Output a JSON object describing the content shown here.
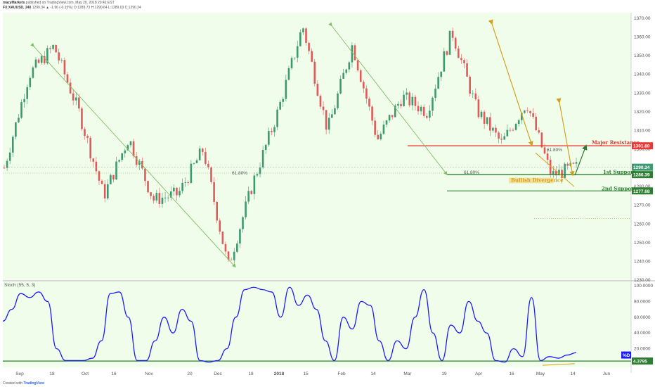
{
  "header": {
    "line1_author": "mazyMarkets",
    "line1_rest": "published on TradingView.com, May 20, 2018 20:42 EST",
    "line2_symbol": "FX:XAUUSD, 240",
    "line2_ohlc": "1290.34 ▲ -1.96 (-0.15%) O:1289.73 H:1290.64 L:1289.03 C:1290.34"
  },
  "footer": {
    "created_with": "Created with",
    "brand": "TradingView"
  },
  "colors": {
    "background": "#f1fdeb",
    "up": "#3d9970",
    "down": "#e05a5a",
    "resistance": "#e53935",
    "support": "#2e7d32",
    "stoch": "#1a1aff",
    "fib": "#a3a339",
    "arrow_green": "#7cbf62",
    "arrow_gold": "#d4a11e"
  },
  "chart_data": [
    {
      "type": "candlestick",
      "instrument": "FX:XAUUSD",
      "timeframe": "240",
      "x_tick_labels": [
        "Sep",
        "18",
        "Oct",
        "16",
        "Nov",
        "20",
        "Dec",
        "18",
        "2018",
        "15",
        "Feb",
        "14",
        "Mar",
        "19",
        "Apr",
        "16",
        "May",
        "14",
        "Jun"
      ],
      "y_tick_labels": [
        "1370.00",
        "1360.00",
        "1350.00",
        "1340.00",
        "1330.00",
        "1320.00",
        "1310.00",
        "1300.00",
        "1290.00",
        "1280.00",
        "1270.00",
        "1260.00",
        "1250.00",
        "1240.00",
        "1230.00"
      ],
      "ylim": [
        1230,
        1373
      ],
      "approx_close_path": [
        [
          "Sep",
          1290
        ],
        [
          "Sep 2wk",
          1340
        ],
        [
          "Sep 13",
          1355
        ],
        [
          "Sep 25",
          1320
        ],
        [
          "Oct 5",
          1275
        ],
        [
          "Oct 16",
          1306
        ],
        [
          "Oct 25",
          1273
        ],
        [
          "Nov 10",
          1276
        ],
        [
          "Nov 28",
          1300
        ],
        [
          "Dec 12",
          1237
        ],
        [
          "Dec 27",
          1282
        ],
        [
          "Jan 8",
          1320
        ],
        [
          "Jan 25",
          1366
        ],
        [
          "Feb 8",
          1310
        ],
        [
          "Feb 16",
          1356
        ],
        [
          "Mar 1",
          1305
        ],
        [
          "Mar 15",
          1328
        ],
        [
          "Mar 29",
          1320
        ],
        [
          "Apr 11",
          1363
        ],
        [
          "Apr 23",
          1321
        ],
        [
          "May 2",
          1303
        ],
        [
          "May 11",
          1325
        ],
        [
          "May 16",
          1286
        ],
        [
          "May 18",
          1290.34
        ]
      ],
      "annotations": [
        {
          "label": "Major Resistance",
          "price": 1301.8,
          "tag": "1301.80",
          "color": "#e53935"
        },
        {
          "label": "1st Support",
          "price": 1286.39,
          "tag": "1286.39",
          "color": "#2e7d32"
        },
        {
          "label": "2nd Support",
          "price": 1277.68,
          "tag": "1277.68",
          "color": "#2e7d32"
        },
        {
          "label": "Bullish Divergence",
          "color": "#d4a11e"
        }
      ],
      "fib_labels": [
        "61.80%",
        "61.80%",
        "61.80%"
      ],
      "current_price_tag": "1290.34"
    },
    {
      "type": "line",
      "indicator": "Stoch (55, 5, 3)",
      "ylim": [
        0,
        100
      ],
      "y_tick_labels": [
        "100.0000",
        "80.0000",
        "60.0000",
        "40.0000",
        "20.0000"
      ],
      "current_value_tag": "4.3795",
      "secondary_tag": "%D",
      "approx_values": [
        55,
        70,
        90,
        85,
        92,
        80,
        20,
        5,
        5,
        5,
        8,
        30,
        90,
        92,
        60,
        5,
        5,
        30,
        60,
        40,
        70,
        55,
        5,
        3,
        5,
        20,
        60,
        95,
        98,
        95,
        92,
        60,
        98,
        75,
        88,
        70,
        30,
        5,
        60,
        45,
        80,
        75,
        30,
        5,
        30,
        20,
        60,
        95,
        40,
        5,
        50,
        40,
        80,
        55,
        40,
        5,
        3,
        20,
        10,
        85,
        5,
        10,
        8,
        12,
        15
      ]
    }
  ]
}
